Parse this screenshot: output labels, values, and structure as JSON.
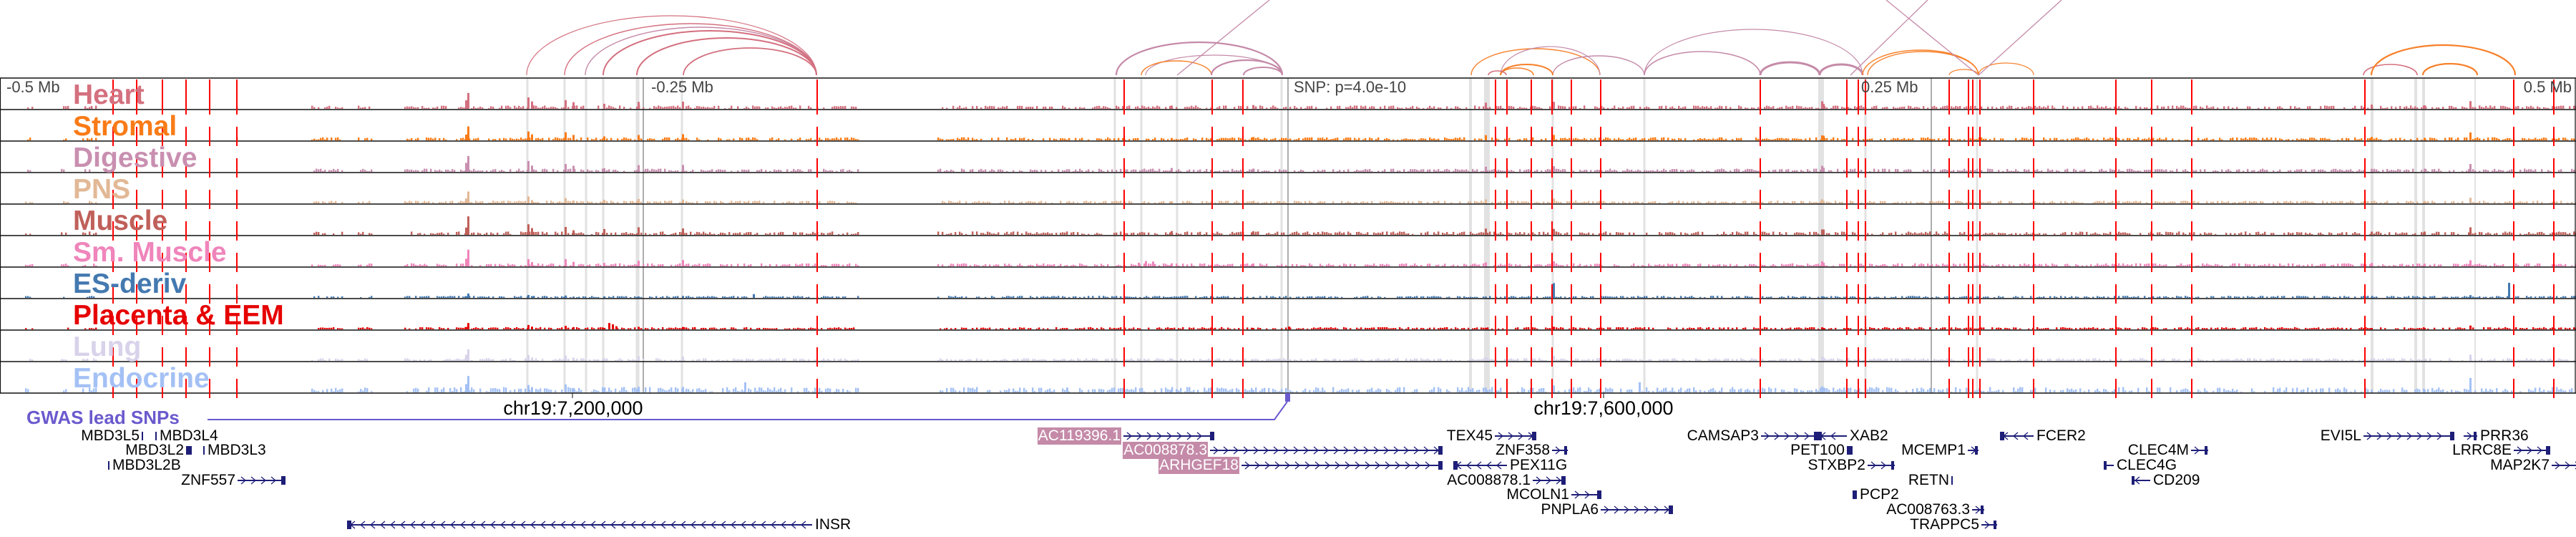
{
  "ruler": {
    "minus_half": "-0.5 Mb",
    "minus_quarter": "-0.25 Mb",
    "snp": "SNP: p=4.0e-10",
    "plus_quarter": "0.25 Mb",
    "plus_half": "0.5 Mb"
  },
  "tracks": [
    {
      "label": "Heart",
      "color": "#d4707f"
    },
    {
      "label": "Stromal",
      "color": "#f97b17"
    },
    {
      "label": "Digestive",
      "color": "#c98fb0"
    },
    {
      "label": "PNS",
      "color": "#e2b896"
    },
    {
      "label": "Muscle",
      "color": "#c0605a"
    },
    {
      "label": "Sm. Muscle",
      "color": "#ef85bb"
    },
    {
      "label": "ES-deriv",
      "color": "#4479b0"
    },
    {
      "label": "Placenta & EEM",
      "color": "#e60000"
    },
    {
      "label": "Lung",
      "color": "#d8d2ea"
    },
    {
      "label": "Endocrine",
      "color": "#a4c1f5"
    }
  ],
  "coordinates": {
    "left": "chr19:7,200,000",
    "right": "chr19:7,600,000"
  },
  "gwas": {
    "label": "GWAS lead SNPs",
    "color": "#6a5acd"
  },
  "colors": {
    "variant_line": "#ff0000",
    "highlight_column": "#e2e2e2",
    "gene": "#1e1e78",
    "gene_highlight": "#c48aa8",
    "arc_purple": "#c58aa8",
    "arc_orange": "#f7802a"
  },
  "genes": [
    {
      "name": "MBD3L5",
      "strand": "+"
    },
    {
      "name": "MBD3L4",
      "strand": "+"
    },
    {
      "name": "MBD3L2",
      "strand": "+"
    },
    {
      "name": "MBD3L3",
      "strand": "+"
    },
    {
      "name": "MBD3L2B",
      "strand": "+"
    },
    {
      "name": "ZNF557",
      "strand": "+"
    },
    {
      "name": "INSR",
      "strand": "-"
    },
    {
      "name": "AC119396.1",
      "strand": "+",
      "highlighted": true
    },
    {
      "name": "AC008878.3",
      "strand": "+",
      "highlighted": true
    },
    {
      "name": "ARHGEF18",
      "strand": "+",
      "highlighted": true
    },
    {
      "name": "TEX45",
      "strand": "+"
    },
    {
      "name": "ZNF358",
      "strand": "+"
    },
    {
      "name": "PEX11G",
      "strand": "-"
    },
    {
      "name": "AC008878.1",
      "strand": "+"
    },
    {
      "name": "MCOLN1",
      "strand": "+"
    },
    {
      "name": "PNPLA6",
      "strand": "+"
    },
    {
      "name": "CAMSAP3",
      "strand": "+"
    },
    {
      "name": "XAB2",
      "strand": "-"
    },
    {
      "name": "PET100",
      "strand": "+"
    },
    {
      "name": "STXBP2",
      "strand": "+"
    },
    {
      "name": "MCEMP1",
      "strand": "+"
    },
    {
      "name": "PCP2",
      "strand": "-"
    },
    {
      "name": "RETN",
      "strand": "+"
    },
    {
      "name": "AC008763.3",
      "strand": "+"
    },
    {
      "name": "TRAPPC5",
      "strand": "+"
    },
    {
      "name": "FCER2",
      "strand": "-"
    },
    {
      "name": "CLEC4M",
      "strand": "+"
    },
    {
      "name": "CLEC4G",
      "strand": "-"
    },
    {
      "name": "CD209",
      "strand": "-"
    },
    {
      "name": "EVI5L",
      "strand": "+"
    },
    {
      "name": "PRR36",
      "strand": "+"
    },
    {
      "name": "LRRC8E",
      "strand": "+"
    },
    {
      "name": "MAP2K7",
      "strand": "+"
    }
  ]
}
